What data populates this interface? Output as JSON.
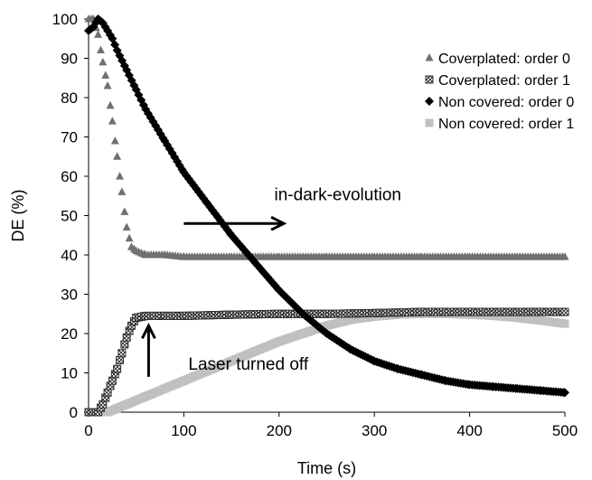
{
  "chart_data": {
    "type": "scatter",
    "xlabel": "Time (s)",
    "ylabel": "DE (%)",
    "xlim": [
      0,
      500
    ],
    "ylim": [
      0,
      100
    ],
    "xticks": [
      0,
      100,
      200,
      300,
      400,
      500
    ],
    "yticks": [
      0,
      10,
      20,
      30,
      40,
      50,
      60,
      70,
      80,
      90,
      100
    ],
    "grid": false,
    "legend_position": "top-right",
    "series": [
      {
        "name": "Coverplated: order 0",
        "marker": "triangle",
        "color": "#707070",
        "x": [
          0,
          5,
          10,
          15,
          20,
          25,
          30,
          35,
          40,
          45,
          50,
          60,
          80,
          100,
          150,
          200,
          250,
          300,
          350,
          400,
          450,
          500
        ],
        "y": [
          100,
          100,
          96,
          89,
          83,
          74,
          65,
          56,
          47,
          42,
          41,
          40,
          40,
          39.5,
          39.5,
          39.5,
          39.5,
          39.5,
          39.5,
          39.5,
          39.5,
          39.5
        ]
      },
      {
        "name": "Coverplated: order 1",
        "marker": "box-x",
        "color": "#303030",
        "x": [
          0,
          5,
          10,
          15,
          20,
          25,
          30,
          35,
          40,
          45,
          50,
          60,
          80,
          100,
          150,
          200,
          250,
          300,
          350,
          400,
          450,
          500
        ],
        "y": [
          0,
          0,
          0,
          2,
          5,
          8,
          11,
          15,
          19,
          22,
          24,
          24.5,
          24.5,
          24.5,
          24.8,
          25,
          25,
          25.2,
          25.5,
          25.5,
          25.5,
          25.5
        ]
      },
      {
        "name": "Non covered: order 0",
        "marker": "diamond",
        "color": "#000000",
        "x": [
          0,
          5,
          10,
          15,
          20,
          25,
          30,
          40,
          50,
          60,
          80,
          100,
          125,
          150,
          175,
          200,
          225,
          250,
          275,
          300,
          325,
          350,
          375,
          400,
          425,
          450,
          475,
          500
        ],
        "y": [
          97,
          98,
          100,
          99,
          97,
          95,
          92,
          87,
          82,
          77,
          69,
          61,
          53,
          45,
          38,
          31,
          25,
          20,
          16,
          13,
          11,
          9.5,
          8,
          7,
          6.5,
          6,
          5.5,
          5
        ]
      },
      {
        "name": "Non covered: order 1",
        "marker": "square",
        "color": "#c0c0c0",
        "x": [
          0,
          10,
          20,
          30,
          40,
          50,
          60,
          80,
          100,
          125,
          150,
          175,
          200,
          225,
          250,
          275,
          300,
          325,
          350,
          375,
          400,
          425,
          450,
          475,
          500
        ],
        "y": [
          0,
          0,
          0,
          1,
          2,
          3,
          4,
          6,
          8,
          10.5,
          13,
          15.5,
          18,
          20,
          22,
          23.5,
          24.3,
          24.8,
          25,
          25,
          24.8,
          24.5,
          24,
          23.3,
          22.5
        ]
      }
    ],
    "annotations": [
      {
        "text": "in-dark-evolution",
        "x": 195,
        "y": 53
      },
      {
        "text": "Laser turned off",
        "x": 100,
        "y": 9
      }
    ],
    "arrows": [
      {
        "from": [
          100,
          48
        ],
        "to": [
          205,
          48
        ]
      },
      {
        "from": [
          63,
          9
        ],
        "to": [
          63,
          22
        ]
      }
    ]
  }
}
